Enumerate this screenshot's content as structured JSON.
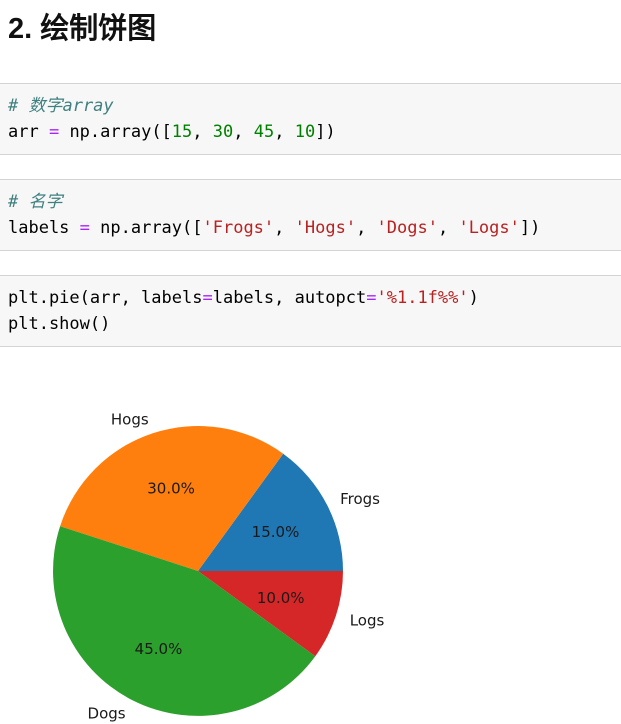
{
  "heading": {
    "text": "2. 绘制饼图"
  },
  "syntax_colors": {
    "comment": "#408080",
    "operator": "#AA22FF",
    "number": "#008000",
    "string": "#BA2121",
    "plain": "#000000"
  },
  "code_cells": [
    {
      "lines": [
        [
          {
            "text": "# 数字array",
            "type": "comment"
          }
        ],
        [
          {
            "text": "arr ",
            "type": "plain"
          },
          {
            "text": "=",
            "type": "op"
          },
          {
            "text": " np.array([",
            "type": "plain"
          },
          {
            "text": "15",
            "type": "num"
          },
          {
            "text": ", ",
            "type": "plain"
          },
          {
            "text": "30",
            "type": "num"
          },
          {
            "text": ", ",
            "type": "plain"
          },
          {
            "text": "45",
            "type": "num"
          },
          {
            "text": ", ",
            "type": "plain"
          },
          {
            "text": "10",
            "type": "num"
          },
          {
            "text": "])",
            "type": "plain"
          }
        ]
      ]
    },
    {
      "lines": [
        [
          {
            "text": "# 名字",
            "type": "comment"
          }
        ],
        [
          {
            "text": "labels ",
            "type": "plain"
          },
          {
            "text": "=",
            "type": "op"
          },
          {
            "text": " np.array([",
            "type": "plain"
          },
          {
            "text": "'Frogs'",
            "type": "str"
          },
          {
            "text": ", ",
            "type": "plain"
          },
          {
            "text": "'Hogs'",
            "type": "str"
          },
          {
            "text": ", ",
            "type": "plain"
          },
          {
            "text": "'Dogs'",
            "type": "str"
          },
          {
            "text": ", ",
            "type": "plain"
          },
          {
            "text": "'Logs'",
            "type": "str"
          },
          {
            "text": "])",
            "type": "plain"
          }
        ]
      ]
    },
    {
      "lines": [
        [
          {
            "text": "plt.pie(arr, labels",
            "type": "plain"
          },
          {
            "text": "=",
            "type": "op"
          },
          {
            "text": "labels, autopct",
            "type": "plain"
          },
          {
            "text": "=",
            "type": "op"
          },
          {
            "text": "'%1.1f%%'",
            "type": "str"
          },
          {
            "text": ")",
            "type": "plain"
          }
        ],
        [
          {
            "text": "plt.show()",
            "type": "plain"
          }
        ]
      ]
    }
  ],
  "chart_data": {
    "type": "pie",
    "labels": [
      "Frogs",
      "Hogs",
      "Dogs",
      "Logs"
    ],
    "values": [
      15,
      30,
      45,
      10
    ],
    "pct_labels": [
      "15.0%",
      "30.0%",
      "45.0%",
      "10.0%"
    ],
    "colors": [
      "#1f77b4",
      "#ff7f0e",
      "#2ca02c",
      "#d62728"
    ],
    "start_angle": 0,
    "direction": "counterclockwise",
    "label_distance": 1.1,
    "pct_distance": 0.6,
    "text_color": "#1a1a1a",
    "title": "",
    "legend": "none"
  }
}
